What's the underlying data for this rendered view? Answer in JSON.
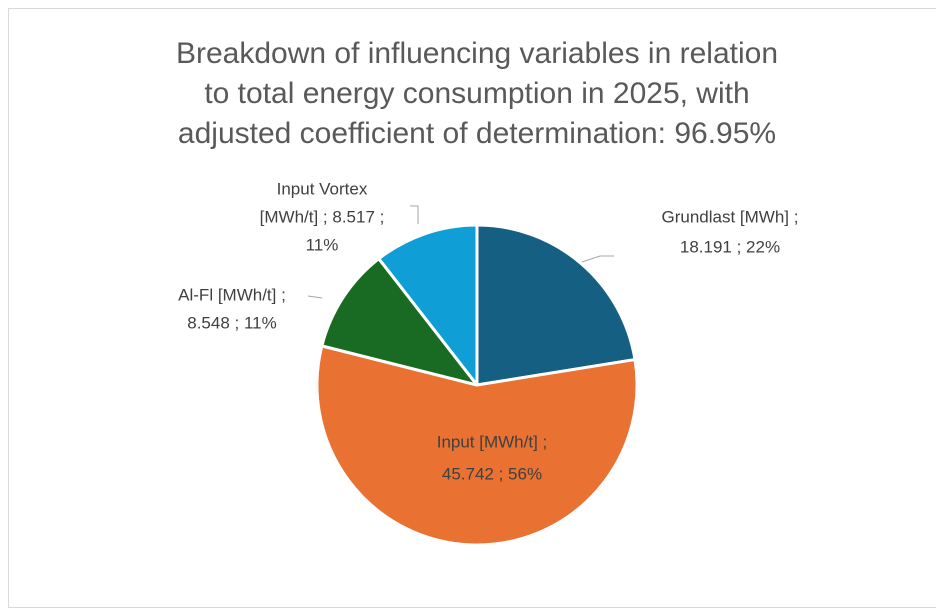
{
  "chart_data": {
    "type": "pie",
    "title": "Breakdown of influencing variables in relation to total energy consumption in 2025, with adjusted coefficient of determination: 96.95%",
    "categories": [
      "Grundlast [MWh]",
      "Input [MWh/t]",
      "Al-Fl [MWh/t]",
      "Input Vortex [MWh/t]"
    ],
    "values": [
      18.191,
      45.742,
      8.548,
      8.517
    ],
    "value_labels": [
      [
        "Grundlast [MWh] ;",
        "18.191 ; 22%"
      ],
      [
        "Input [MWh/t] ;",
        "45.742 ; 56%"
      ],
      [
        "Al-Fl [MWh/t] ;",
        "8.548 ; 11%"
      ],
      [
        "Input Vortex",
        "[MWh/t] ; 8.517 ;",
        "11%"
      ]
    ],
    "colors": [
      "#156082",
      "#e97132",
      "#196b24",
      "#0f9ed5"
    ]
  }
}
